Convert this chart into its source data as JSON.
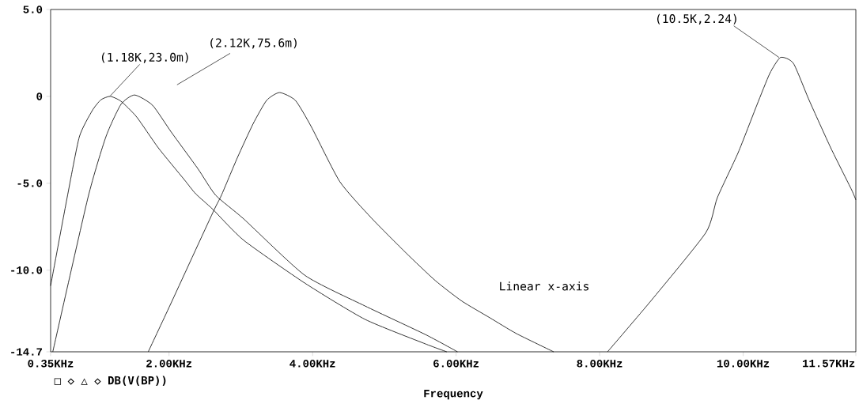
{
  "chart_data": {
    "type": "line",
    "xlabel": "Frequency",
    "xlim": [
      0.35,
      11.57
    ],
    "ylim": [
      -14.7,
      5.0
    ],
    "xticks": [
      {
        "value": 0.35,
        "label": "0.35KHz"
      },
      {
        "value": 2,
        "label": "2.00KHz"
      },
      {
        "value": 4,
        "label": "4.00KHz"
      },
      {
        "value": 6,
        "label": "6.00KHz"
      },
      {
        "value": 8,
        "label": "8.00KHz"
      },
      {
        "value": 10,
        "label": "10.00KHz"
      },
      {
        "value": 11.57,
        "label": "11.57KHz"
      }
    ],
    "yticks": [
      {
        "value": -14.7,
        "label": "-14.7"
      },
      {
        "value": -10,
        "label": "-10.0"
      },
      {
        "value": -5,
        "label": "-5.0"
      },
      {
        "value": 0,
        "label": "0"
      },
      {
        "value": 5,
        "label": "5.0"
      }
    ],
    "grid": false,
    "marker": "none",
    "line_style": "solid",
    "series": [
      {
        "color": "#000000",
        "x": [
          0.35,
          0.58,
          0.75,
          0.93,
          1.05,
          1.18,
          1.33,
          1.55,
          1.85,
          2.21,
          2.37,
          2.61,
          3.04,
          3.89,
          4.73,
          5.57,
          5.87
        ],
        "values": [
          -10.9,
          -5.83,
          -2.33,
          -0.82,
          -0.2,
          0.0,
          -0.28,
          -1.19,
          -2.96,
          -4.78,
          -5.6,
          -6.5,
          -8.28,
          -10.74,
          -12.83,
          -14.24,
          -14.7
        ]
      },
      {
        "color": "#000000",
        "x": [
          0.38,
          0.87,
          1.12,
          1.33,
          1.52,
          1.77,
          2.03,
          2.4,
          2.65,
          3.04,
          3.89,
          4.73,
          5.57,
          6.02
        ],
        "values": [
          -14.7,
          -5.83,
          -2.33,
          -0.46,
          0.08,
          -0.51,
          -2.05,
          -4.15,
          -5.69,
          -7.05,
          -10.29,
          -12.06,
          -13.7,
          -14.7
        ]
      },
      {
        "color": "#000000",
        "x": [
          1.71,
          2.02,
          2.61,
          2.73,
          2.95,
          3.17,
          3.36,
          3.54,
          3.76,
          3.98,
          4.38,
          4.82,
          5.3,
          5.71,
          6.08,
          6.47,
          6.84,
          7.36
        ],
        "values": [
          -14.7,
          -11.97,
          -6.69,
          -5.69,
          -3.55,
          -1.59,
          -0.23,
          0.22,
          -0.23,
          -1.73,
          -4.91,
          -7.0,
          -9.0,
          -10.6,
          -11.78,
          -12.74,
          -13.65,
          -14.7
        ]
      },
      {
        "color": "#000000",
        "x": [
          8.11,
          8.72,
          9.48,
          9.64,
          9.93,
          10.19,
          10.37,
          10.52,
          10.7,
          10.92,
          11.22,
          11.51,
          11.57
        ],
        "values": [
          -14.7,
          -11.74,
          -7.84,
          -5.83,
          -3.24,
          -0.51,
          1.31,
          2.24,
          1.9,
          -0.23,
          -2.96,
          -5.37,
          -5.96
        ]
      }
    ],
    "annotations": [
      {
        "text": "(1.18K,23.0m)",
        "x": 1.18,
        "y": 0.023
      },
      "(2.12K,75.6m)",
      {
        "text": "(10.5K,2.24)",
        "x": 10.5,
        "y": 2.24
      },
      "Linear x-axis",
      "□ ◇   △ ◇ DB(V(BP))"
    ]
  }
}
